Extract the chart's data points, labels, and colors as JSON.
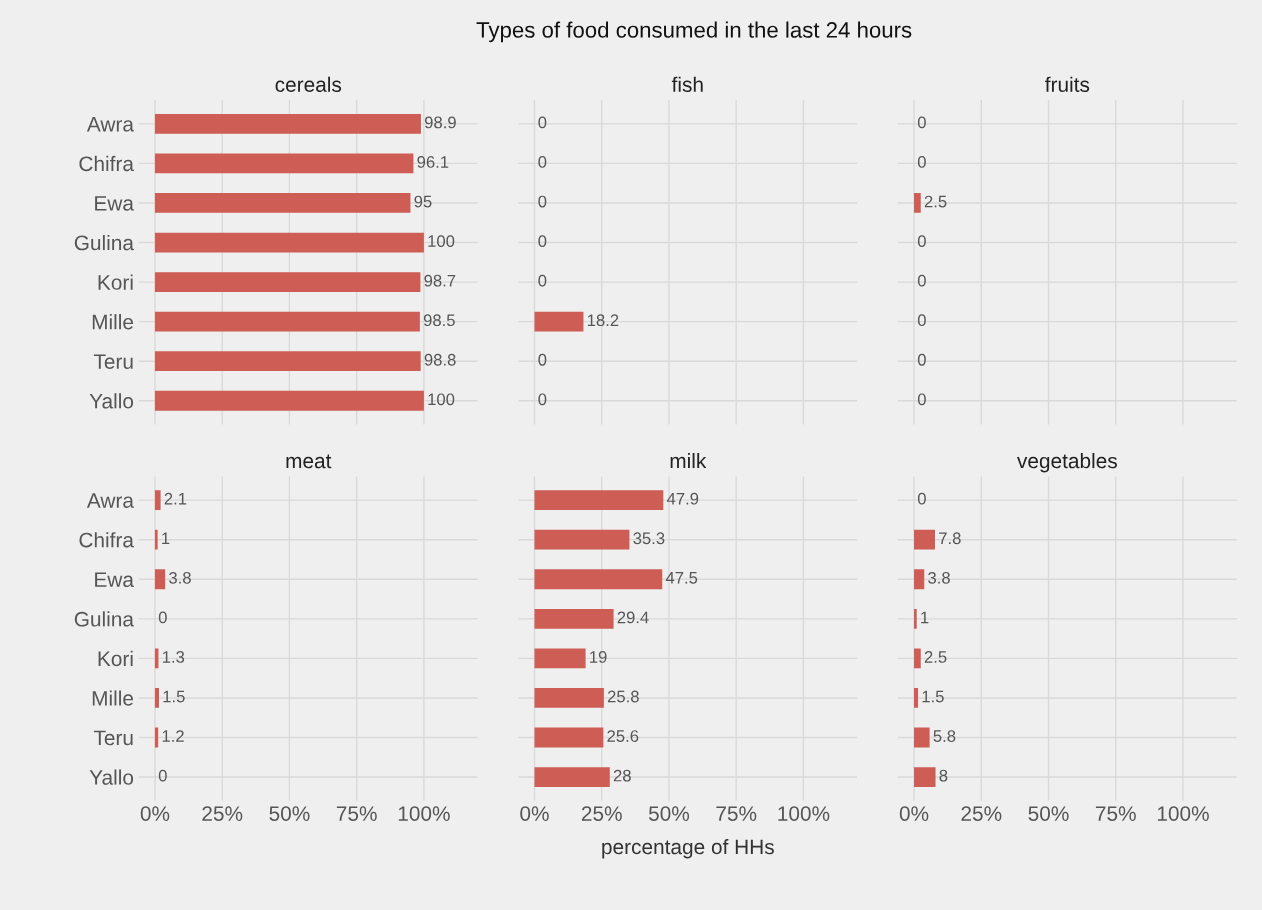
{
  "chart_data": [
    {
      "type": "bar",
      "orientation": "horizontal",
      "title": "cereals",
      "annotations": [
        "Types of food consumed in the last 24 hours"
      ],
      "categories": [
        "Awra",
        "Chifra",
        "Ewa",
        "Gulina",
        "Kori",
        "Mille",
        "Teru",
        "Yallo"
      ],
      "values": [
        98.9,
        96.1,
        95,
        100,
        98.7,
        98.5,
        98.8,
        100
      ],
      "color": "#cd5d55",
      "data_labels": true,
      "xlim": [
        -6,
        120
      ],
      "xticks": [
        {
          "value": 0,
          "label": null
        },
        {
          "value": 25,
          "label": null
        },
        {
          "value": 50,
          "label": null
        },
        {
          "value": 75,
          "label": null
        },
        {
          "value": 100,
          "label": null
        }
      ],
      "grid": true,
      "tick_labels": "y"
    },
    {
      "type": "bar",
      "orientation": "horizontal",
      "title": "fish",
      "categories": [
        null,
        null,
        null,
        null,
        null,
        null,
        null,
        null
      ],
      "values": [
        0,
        0,
        0,
        0,
        0,
        18.2,
        0,
        0
      ],
      "color": "#cd5d55",
      "data_labels": true,
      "xlim": [
        -6,
        120
      ],
      "xticks": [
        {
          "value": 0,
          "label": null
        },
        {
          "value": 25,
          "label": null
        },
        {
          "value": 50,
          "label": null
        },
        {
          "value": 75,
          "label": null
        },
        {
          "value": 100,
          "label": null
        }
      ],
      "grid": true,
      "tick_labels": false
    },
    {
      "type": "bar",
      "orientation": "horizontal",
      "title": "fruits",
      "categories": [
        null,
        null,
        null,
        null,
        null,
        null,
        null,
        null
      ],
      "values": [
        0,
        0,
        2.5,
        0,
        0,
        0,
        0,
        0
      ],
      "color": "#cd5d55",
      "data_labels": true,
      "xlim": [
        -6,
        120
      ],
      "xticks": [
        {
          "value": 0,
          "label": null
        },
        {
          "value": 25,
          "label": null
        },
        {
          "value": 50,
          "label": null
        },
        {
          "value": 75,
          "label": null
        },
        {
          "value": 100,
          "label": null
        }
      ],
      "grid": true,
      "tick_labels": false
    },
    {
      "type": "bar",
      "orientation": "horizontal",
      "title": "meat",
      "categories": [
        "Awra",
        "Chifra",
        "Ewa",
        "Gulina",
        "Kori",
        "Mille",
        "Teru",
        "Yallo"
      ],
      "values": [
        2.1,
        1,
        3.8,
        0,
        1.3,
        1.5,
        1.2,
        0
      ],
      "color": "#cd5d55",
      "data_labels": true,
      "xlim": [
        -6,
        120
      ],
      "xticks": [
        {
          "value": 0,
          "label": "0%"
        },
        {
          "value": 25,
          "label": "25%"
        },
        {
          "value": 50,
          "label": "50%"
        },
        {
          "value": 75,
          "label": "75%"
        },
        {
          "value": 100,
          "label": "100%"
        }
      ],
      "grid": true
    },
    {
      "type": "bar",
      "orientation": "horizontal",
      "title": "milk",
      "xlabel": "percentage of HHs",
      "categories": [
        null,
        null,
        null,
        null,
        null,
        null,
        null,
        null
      ],
      "values": [
        47.9,
        35.3,
        47.5,
        29.4,
        19,
        25.8,
        25.6,
        28
      ],
      "color": "#cd5d55",
      "data_labels": true,
      "xlim": [
        -6,
        120
      ],
      "xticks": [
        {
          "value": 0,
          "label": "0%"
        },
        {
          "value": 25,
          "label": "25%"
        },
        {
          "value": 50,
          "label": "50%"
        },
        {
          "value": 75,
          "label": "75%"
        },
        {
          "value": 100,
          "label": "100%"
        }
      ],
      "grid": true,
      "tick_labels": "x"
    },
    {
      "type": "bar",
      "orientation": "horizontal",
      "title": "vegetables",
      "categories": [
        null,
        null,
        null,
        null,
        null,
        null,
        null,
        null
      ],
      "values": [
        0,
        7.8,
        3.8,
        1,
        2.5,
        1.5,
        5.8,
        8
      ],
      "color": "#cd5d55",
      "data_labels": true,
      "xlim": [
        -6,
        120
      ],
      "xticks": [
        {
          "value": 0,
          "label": "0%"
        },
        {
          "value": 25,
          "label": "25%"
        },
        {
          "value": 50,
          "label": "50%"
        },
        {
          "value": 75,
          "label": "75%"
        },
        {
          "value": 100,
          "label": "100%"
        }
      ],
      "grid": true,
      "tick_labels": "x"
    }
  ]
}
